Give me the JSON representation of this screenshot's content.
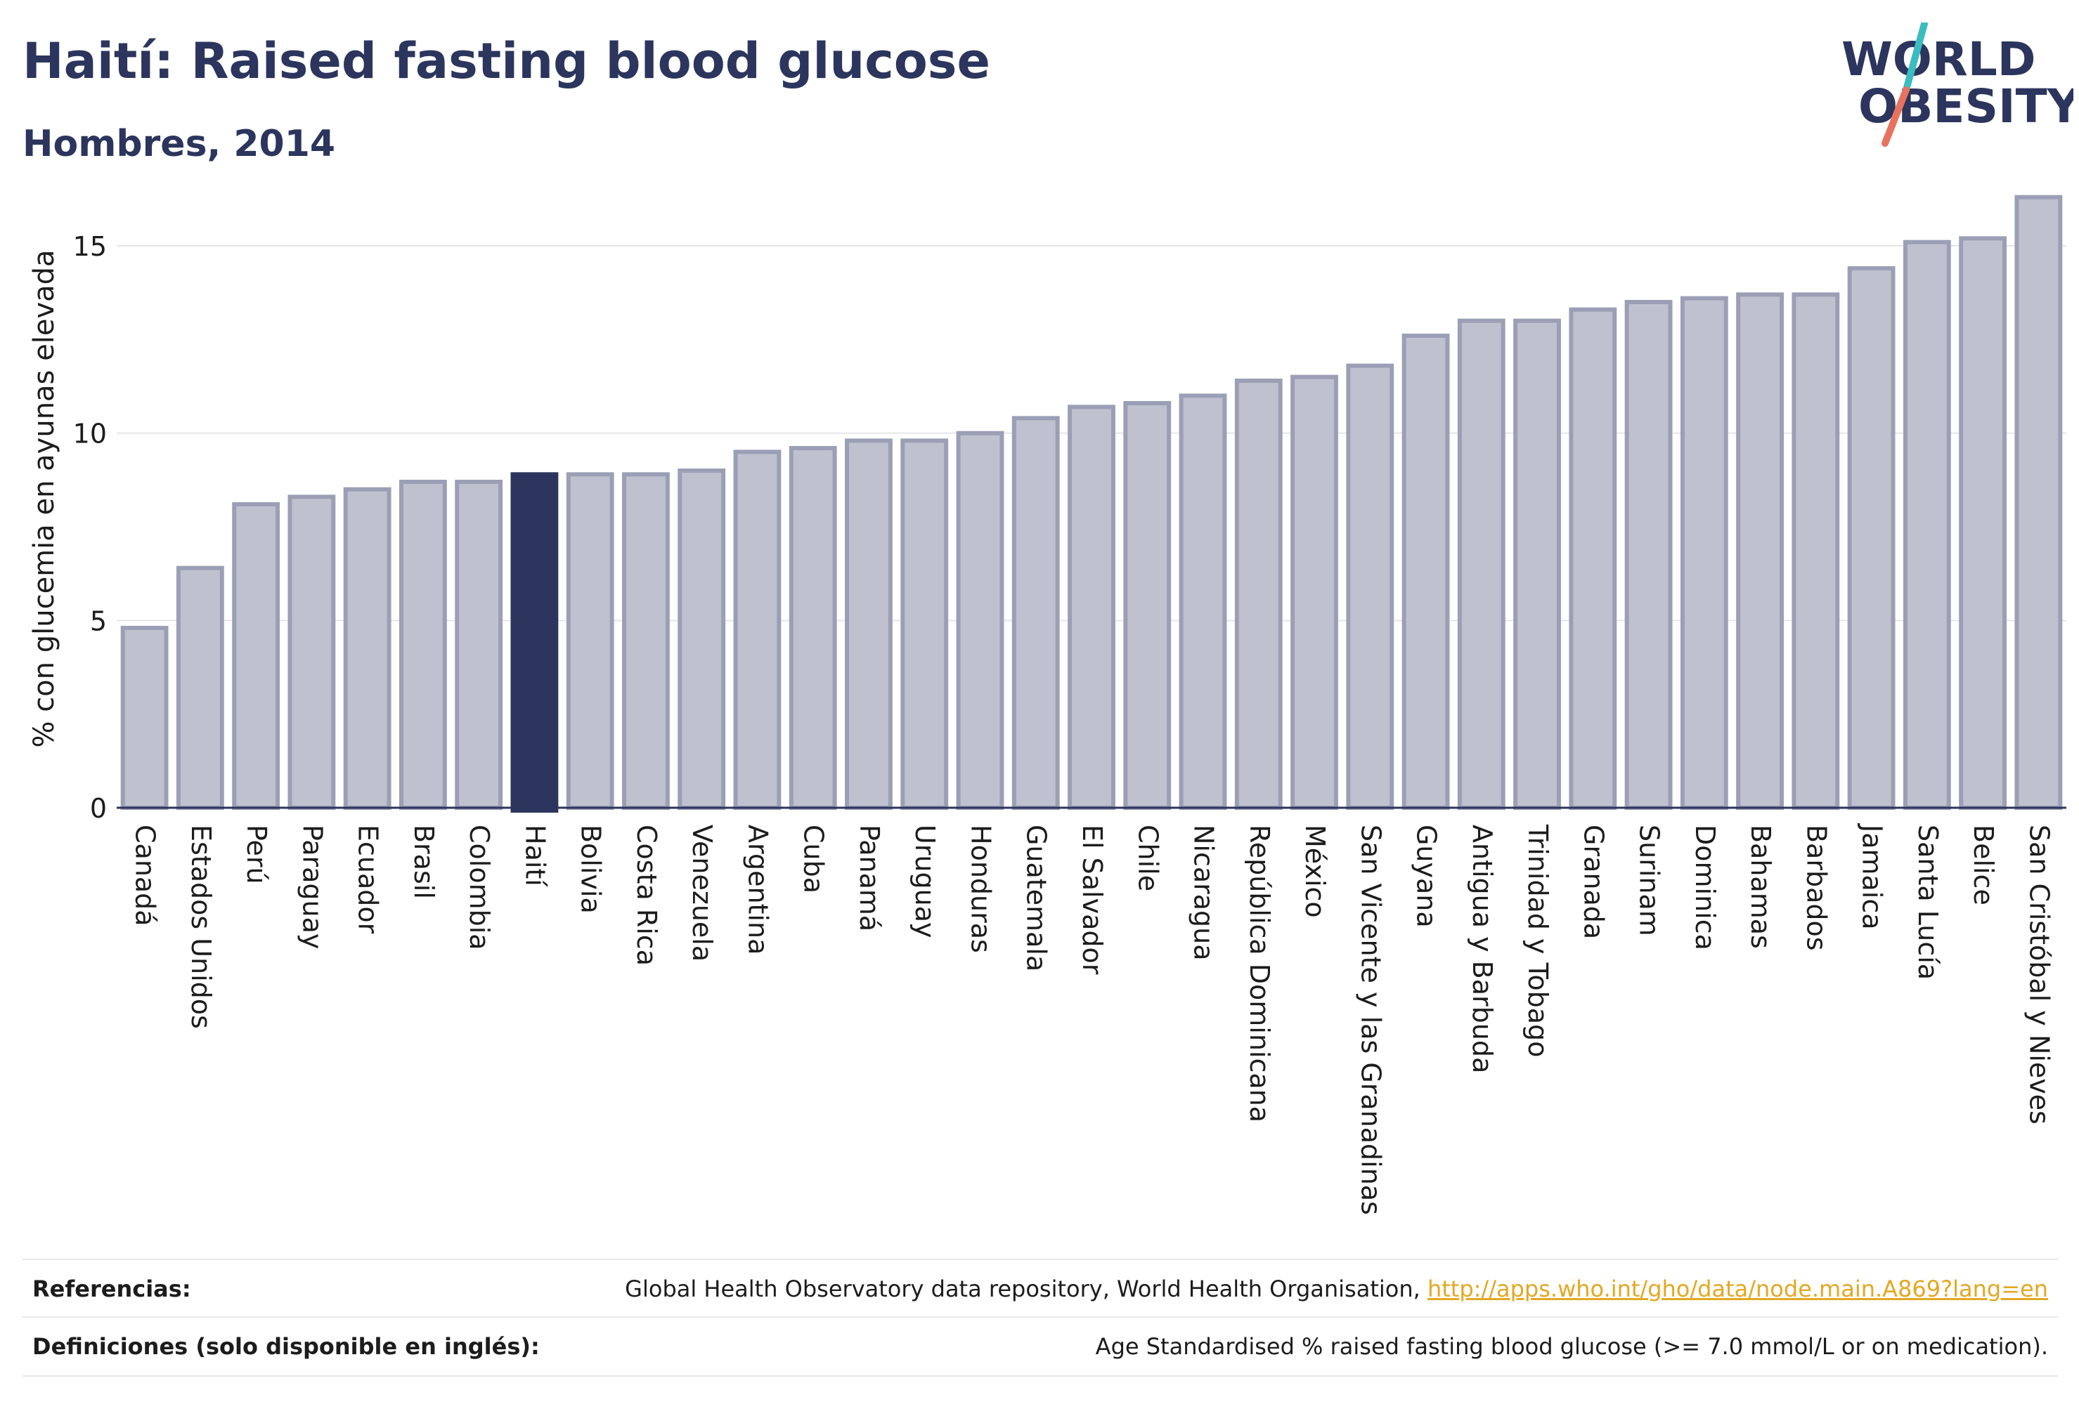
{
  "header": {
    "title": "Haití: Raised fasting blood glucose",
    "subtitle": "Hombres, 2014"
  },
  "logo": {
    "line1": "WORLD",
    "line2": "OBESITY",
    "accent_teal": "#3bbcc0",
    "accent_coral": "#e7735f"
  },
  "colors": {
    "bar": "#bfc1cf",
    "bar_border": "#9b9fb6",
    "highlight": "#2b355d",
    "grid": "#e6e6ea",
    "axis": "#2b355d"
  },
  "chart_data": {
    "type": "bar",
    "title": "Haití: Raised fasting blood glucose",
    "subtitle": "Hombres, 2014",
    "ylabel": "% con glucemia en ayunas elevada",
    "xlabel": "",
    "ylim": [
      0,
      16.5
    ],
    "yticks": [
      0,
      5,
      10,
      15
    ],
    "grid": true,
    "highlight": "Haití",
    "categories": [
      "Canadá",
      "Estados Unidos",
      "Perú",
      "Paraguay",
      "Ecuador",
      "Brasil",
      "Colombia",
      "Haití",
      "Bolivia",
      "Costa Rica",
      "Venezuela",
      "Argentina",
      "Cuba",
      "Panamá",
      "Uruguay",
      "Honduras",
      "Guatemala",
      "El Salvador",
      "Chile",
      "Nicaragua",
      "República Dominicana",
      "México",
      "San Vicente y las Granadinas",
      "Guyana",
      "Antigua y Barbuda",
      "Trinidad y Tobago",
      "Granada",
      "Surinam",
      "Dominica",
      "Bahamas",
      "Barbados",
      "Jamaica",
      "Santa Lucía",
      "Belice",
      "San Cristóbal y Nieves"
    ],
    "values": [
      4.8,
      6.4,
      8.1,
      8.3,
      8.5,
      8.7,
      8.7,
      8.9,
      8.9,
      8.9,
      9.0,
      9.5,
      9.6,
      9.8,
      9.8,
      10.0,
      10.4,
      10.7,
      10.8,
      11.0,
      11.4,
      11.5,
      11.8,
      12.6,
      13.0,
      13.0,
      13.3,
      13.5,
      13.6,
      13.7,
      13.7,
      14.4,
      15.1,
      15.2,
      16.3
    ]
  },
  "footer": {
    "ref_label": "Referencias:",
    "ref_text": "Global Health Observatory data repository, World Health Organisation,",
    "ref_link": "http://apps.who.int/gho/data/node.main.A869?lang=en",
    "def_label": "Definiciones (solo disponible en inglés):",
    "def_text": "Age Standardised % raised fasting blood glucose (>= 7.0 mmol/L or on medication)."
  }
}
